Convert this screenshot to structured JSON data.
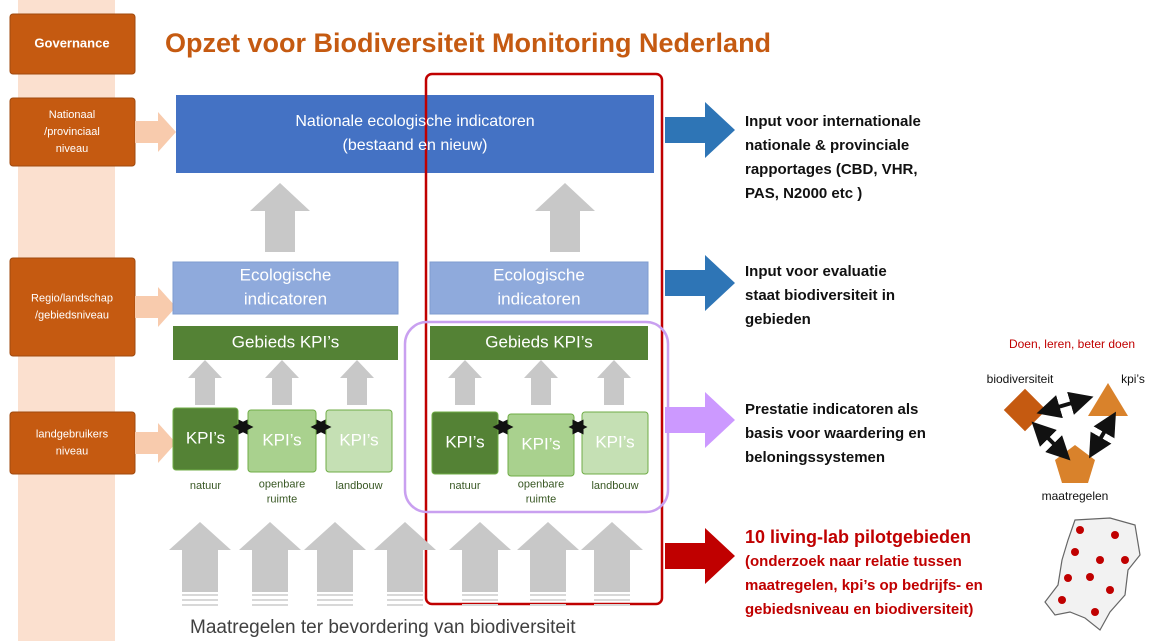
{
  "title": "Opzet voor Biodiversiteit Monitoring Nederland",
  "levels": [
    [
      "Governance"
    ],
    [
      "Nationaal",
      "/provinciaal",
      "niveau"
    ],
    [
      "Regio/landschap",
      "/gebiedsniveau"
    ],
    [
      "landgebruikers",
      "niveau"
    ]
  ],
  "national_box": [
    "Nationale ecologische indicatoren",
    "(bestaand en nieuw)"
  ],
  "columns": [
    {
      "eco": [
        "Ecologische",
        "indicatoren"
      ],
      "kpi_header": "Gebieds KPI’s",
      "kpis": [
        {
          "label": "KPI’s",
          "sector": [
            "natuur"
          ]
        },
        {
          "label": "KPI’s",
          "sector": [
            "openbare",
            "ruimte"
          ]
        },
        {
          "label": "KPI’s",
          "sector": [
            "landbouw"
          ]
        }
      ]
    },
    {
      "eco": [
        "Ecologische",
        "indicatoren"
      ],
      "kpi_header": "Gebieds KPI’s",
      "kpis": [
        {
          "label": "KPI’s",
          "sector": [
            "natuur"
          ]
        },
        {
          "label": "KPI’s",
          "sector": [
            "openbare",
            "ruimte"
          ]
        },
        {
          "label": "KPI’s",
          "sector": [
            "landbouw"
          ]
        }
      ]
    }
  ],
  "outputs": [
    [
      "Input voor internationale",
      "nationale & provinciale",
      "rapportages (CBD, VHR,",
      "PAS, N2000 etc )"
    ],
    [
      "Input voor evaluatie",
      "staat biodiversiteit in",
      "gebieden"
    ],
    [
      "Prestatie indicatoren als",
      "basis voor waardering en",
      "beloningssystemen"
    ],
    [
      "10 living-lab pilotgebieden",
      "(onderzoek naar relatie tussen",
      "maatregelen, kpi’s op bedrijfs- en",
      "gebiedsniveau en biodiversiteit)"
    ]
  ],
  "cycle": {
    "title": "Doen, leren, beter doen",
    "nodes": [
      "biodiversiteit",
      "kpi’s",
      "maatregelen"
    ]
  },
  "footer": "Maatregelen ter bevordering van biodiversiteit"
}
